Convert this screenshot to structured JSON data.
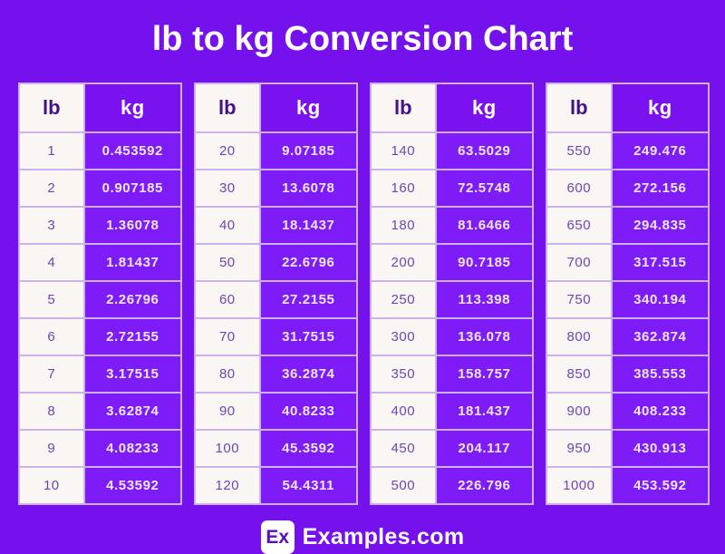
{
  "title": "lb to kg Conversion Chart",
  "footer": {
    "logo_text": "Ex",
    "site_name": "Examples.com"
  },
  "colors": {
    "background": "#7511ed",
    "kg_header_bg": "#7a12f0",
    "kg_cell_bg": "#7d1cf7",
    "lb_cell_bg": "#faf6f3",
    "lb_header_text": "#441285",
    "lb_cell_text": "#6b46b5",
    "kg_cell_text": "#f1e6fd",
    "title_text": "#ffffff",
    "cell_border": "#cdb0f0",
    "logo_box_bg": "#ffffff",
    "logo_text_color": "#5a0dbe"
  },
  "tables": [
    {
      "lb_label": "lb",
      "kg_label": "kg",
      "rows": [
        {
          "lb": "1",
          "kg": "0.453592"
        },
        {
          "lb": "2",
          "kg": "0.907185"
        },
        {
          "lb": "3",
          "kg": "1.36078"
        },
        {
          "lb": "4",
          "kg": "1.81437"
        },
        {
          "lb": "5",
          "kg": "2.26796"
        },
        {
          "lb": "6",
          "kg": "2.72155"
        },
        {
          "lb": "7",
          "kg": "3.17515"
        },
        {
          "lb": "8",
          "kg": "3.62874"
        },
        {
          "lb": "9",
          "kg": "4.08233"
        },
        {
          "lb": "10",
          "kg": "4.53592"
        }
      ]
    },
    {
      "lb_label": "lb",
      "kg_label": "kg",
      "rows": [
        {
          "lb": "20",
          "kg": "9.07185"
        },
        {
          "lb": "30",
          "kg": "13.6078"
        },
        {
          "lb": "40",
          "kg": "18.1437"
        },
        {
          "lb": "50",
          "kg": "22.6796"
        },
        {
          "lb": "60",
          "kg": "27.2155"
        },
        {
          "lb": "70",
          "kg": "31.7515"
        },
        {
          "lb": "80",
          "kg": "36.2874"
        },
        {
          "lb": "90",
          "kg": "40.8233"
        },
        {
          "lb": "100",
          "kg": "45.3592"
        },
        {
          "lb": "120",
          "kg": "54.4311"
        }
      ]
    },
    {
      "lb_label": "lb",
      "kg_label": "kg",
      "rows": [
        {
          "lb": "140",
          "kg": "63.5029"
        },
        {
          "lb": "160",
          "kg": "72.5748"
        },
        {
          "lb": "180",
          "kg": "81.6466"
        },
        {
          "lb": "200",
          "kg": "90.7185"
        },
        {
          "lb": "250",
          "kg": "113.398"
        },
        {
          "lb": "300",
          "kg": "136.078"
        },
        {
          "lb": "350",
          "kg": "158.757"
        },
        {
          "lb": "400",
          "kg": "181.437"
        },
        {
          "lb": "450",
          "kg": "204.117"
        },
        {
          "lb": "500",
          "kg": "226.796"
        }
      ]
    },
    {
      "lb_label": "lb",
      "kg_label": "kg",
      "rows": [
        {
          "lb": "550",
          "kg": "249.476"
        },
        {
          "lb": "600",
          "kg": "272.156"
        },
        {
          "lb": "650",
          "kg": "294.835"
        },
        {
          "lb": "700",
          "kg": "317.515"
        },
        {
          "lb": "750",
          "kg": "340.194"
        },
        {
          "lb": "800",
          "kg": "362.874"
        },
        {
          "lb": "850",
          "kg": "385.553"
        },
        {
          "lb": "900",
          "kg": "408.233"
        },
        {
          "lb": "950",
          "kg": "430.913"
        },
        {
          "lb": "1000",
          "kg": "453.592"
        }
      ]
    }
  ],
  "chart_data": {
    "type": "table",
    "title": "lb to kg Conversion Chart",
    "columns": [
      "lb",
      "kg"
    ],
    "rows": [
      [
        1,
        0.453592
      ],
      [
        2,
        0.907185
      ],
      [
        3,
        1.36078
      ],
      [
        4,
        1.81437
      ],
      [
        5,
        2.26796
      ],
      [
        6,
        2.72155
      ],
      [
        7,
        3.17515
      ],
      [
        8,
        3.62874
      ],
      [
        9,
        4.08233
      ],
      [
        10,
        4.53592
      ],
      [
        20,
        9.07185
      ],
      [
        30,
        13.6078
      ],
      [
        40,
        18.1437
      ],
      [
        50,
        22.6796
      ],
      [
        60,
        27.2155
      ],
      [
        70,
        31.7515
      ],
      [
        80,
        36.2874
      ],
      [
        90,
        40.8233
      ],
      [
        100,
        45.3592
      ],
      [
        120,
        54.4311
      ],
      [
        140,
        63.5029
      ],
      [
        160,
        72.5748
      ],
      [
        180,
        81.6466
      ],
      [
        200,
        90.7185
      ],
      [
        250,
        113.398
      ],
      [
        300,
        136.078
      ],
      [
        350,
        158.757
      ],
      [
        400,
        181.437
      ],
      [
        450,
        204.117
      ],
      [
        500,
        226.796
      ],
      [
        550,
        249.476
      ],
      [
        600,
        272.156
      ],
      [
        650,
        294.835
      ],
      [
        700,
        317.515
      ],
      [
        750,
        340.194
      ],
      [
        800,
        362.874
      ],
      [
        850,
        385.553
      ],
      [
        900,
        408.233
      ],
      [
        950,
        430.913
      ],
      [
        1000,
        453.592
      ]
    ]
  }
}
